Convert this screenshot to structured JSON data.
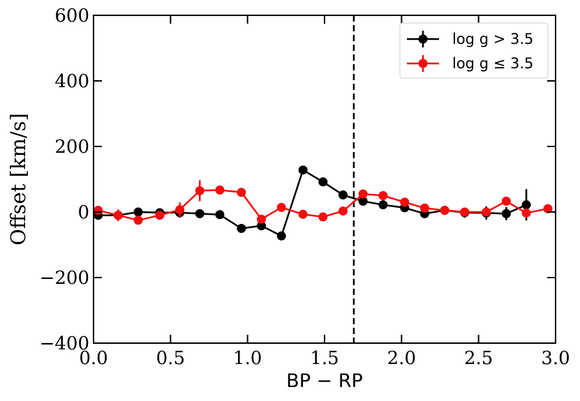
{
  "chart_data": {
    "type": "line",
    "title": "",
    "xlabel": "BP − RP",
    "ylabel": "Offset [km/s]",
    "xlim": [
      0.0,
      3.0
    ],
    "ylim": [
      -400,
      600
    ],
    "xticks": [
      "0.0",
      "0.5",
      "1.0",
      "1.5",
      "2.0",
      "2.5",
      "3.0"
    ],
    "yticks": [
      "−400",
      "−200",
      "0",
      "200",
      "400",
      "600"
    ],
    "grid": false,
    "legend_position": "top-right",
    "vline": {
      "x": 1.69,
      "style": "dashed",
      "color": "#000000"
    },
    "series": [
      {
        "name": "log g > 3.5",
        "legend_label": "log g > 3.5",
        "color": "#000000",
        "x": [
          0.03,
          0.16,
          0.29,
          0.43,
          0.56,
          0.69,
          0.82,
          0.96,
          1.09,
          1.22,
          1.36,
          1.49,
          1.62,
          1.75,
          1.88,
          2.02,
          2.15,
          2.28,
          2.41,
          2.55,
          2.68,
          2.81
        ],
        "y": [
          -10,
          -10,
          0,
          -2,
          -2,
          -5,
          -8,
          -50,
          -42,
          -73,
          128,
          92,
          52,
          33,
          22,
          13,
          -5,
          5,
          -2,
          -3,
          -5,
          22
        ],
        "yerr": [
          12,
          10,
          5,
          5,
          15,
          5,
          5,
          5,
          5,
          5,
          5,
          5,
          5,
          5,
          5,
          5,
          5,
          8,
          15,
          20,
          20,
          48
        ]
      },
      {
        "name": "log g ≤ 3.5",
        "legend_label": "log g ≤ 3.5",
        "color": "#f40d0d",
        "x": [
          0.03,
          0.16,
          0.29,
          0.43,
          0.56,
          0.69,
          0.82,
          0.96,
          1.09,
          1.22,
          1.36,
          1.49,
          1.62,
          1.75,
          1.88,
          2.02,
          2.15,
          2.28,
          2.41,
          2.55,
          2.68,
          2.81,
          2.95
        ],
        "y": [
          5,
          -10,
          -25,
          -10,
          7,
          65,
          67,
          60,
          -22,
          14,
          -7,
          -15,
          3,
          55,
          50,
          30,
          12,
          5,
          0,
          0,
          33,
          -3,
          10
        ],
        "yerr": [
          8,
          18,
          12,
          12,
          22,
          32,
          10,
          8,
          8,
          8,
          6,
          6,
          6,
          8,
          6,
          6,
          6,
          6,
          8,
          8,
          12,
          10,
          10
        ]
      }
    ]
  }
}
